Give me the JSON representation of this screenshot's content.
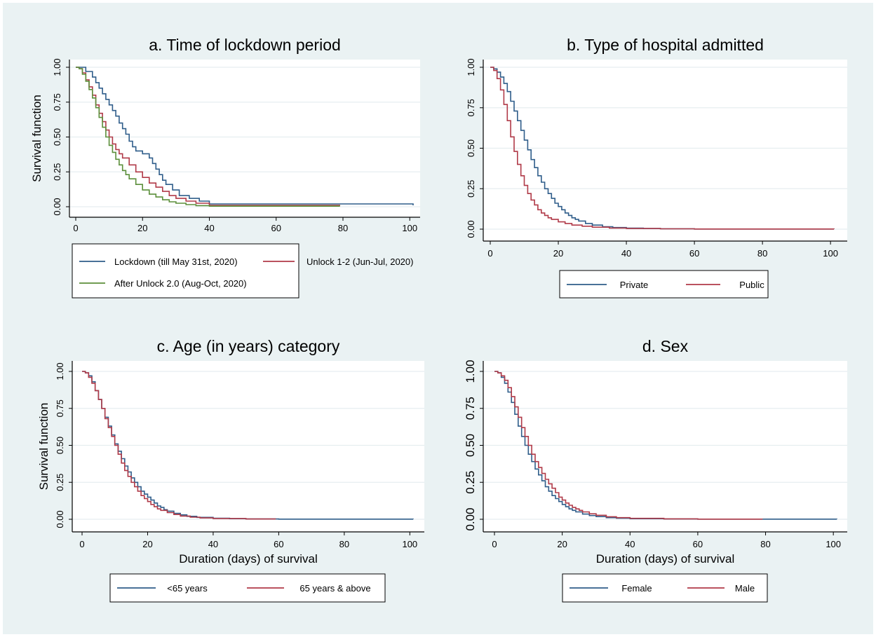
{
  "colors": {
    "figure_bg": "#eaf2f3",
    "plot_bg": "#ffffff",
    "grid": "#e6eef0",
    "navy": "#2f5d8a",
    "maroon": "#b03a48",
    "green": "#5b8f3a"
  },
  "chart_data": [
    {
      "type": "line",
      "step": true,
      "title": "a. Time of lockdown period",
      "xlabel": "",
      "ylabel": "Survival function",
      "xlim": [
        0,
        101
      ],
      "ylim": [
        0,
        1
      ],
      "xticks": [
        0,
        20,
        40,
        60,
        80,
        100
      ],
      "yticks": [
        "0.00",
        "0.25",
        "0.50",
        "0.75",
        "1.00"
      ],
      "legend": "bottom",
      "grid": true,
      "series": [
        {
          "name": "Lockdown (till May 31st, 2020)",
          "color": "#2f5d8a",
          "x": [
            0,
            3,
            5,
            6,
            7,
            8,
            9,
            10,
            11,
            12,
            13,
            14,
            15,
            16,
            17,
            18,
            20,
            22,
            23,
            24,
            25,
            26,
            27,
            29,
            31,
            34,
            37,
            40,
            101
          ],
          "y": [
            1.0,
            0.97,
            0.93,
            0.89,
            0.85,
            0.81,
            0.77,
            0.73,
            0.69,
            0.65,
            0.6,
            0.56,
            0.52,
            0.47,
            0.43,
            0.4,
            0.38,
            0.35,
            0.31,
            0.27,
            0.23,
            0.19,
            0.16,
            0.12,
            0.08,
            0.06,
            0.04,
            0.02,
            0.01
          ]
        },
        {
          "name": "Unlock 1-2 (Jun-Jul, 2020)",
          "color": "#b03a48",
          "x": [
            0,
            1,
            2,
            3,
            4,
            5,
            6,
            7,
            8,
            9,
            10,
            11,
            12,
            13,
            14,
            16,
            18,
            20,
            22,
            24,
            26,
            28,
            30,
            33,
            36,
            40,
            79
          ],
          "y": [
            1.0,
            0.99,
            0.96,
            0.91,
            0.86,
            0.8,
            0.73,
            0.67,
            0.61,
            0.55,
            0.5,
            0.45,
            0.41,
            0.38,
            0.35,
            0.3,
            0.25,
            0.21,
            0.17,
            0.14,
            0.11,
            0.08,
            0.06,
            0.04,
            0.025,
            0.01,
            0.005
          ]
        },
        {
          "name": "After Unlock 2.0 (Aug-Oct, 2020)",
          "color": "#5b8f3a",
          "x": [
            0,
            1,
            2,
            3,
            4,
            5,
            6,
            7,
            8,
            9,
            10,
            11,
            12,
            13,
            14,
            15,
            16,
            18,
            20,
            22,
            24,
            26,
            28,
            30,
            33,
            36,
            40,
            79
          ],
          "y": [
            1.0,
            0.99,
            0.95,
            0.9,
            0.84,
            0.78,
            0.71,
            0.64,
            0.57,
            0.5,
            0.44,
            0.39,
            0.34,
            0.3,
            0.26,
            0.23,
            0.2,
            0.16,
            0.12,
            0.09,
            0.07,
            0.05,
            0.035,
            0.025,
            0.015,
            0.008,
            0.004,
            0.002
          ]
        }
      ]
    },
    {
      "type": "line",
      "step": true,
      "title": "b. Type of hospital admitted",
      "xlabel": "",
      "ylabel": "",
      "xlim": [
        0,
        101
      ],
      "ylim": [
        0,
        1
      ],
      "xticks": [
        0,
        20,
        40,
        60,
        80,
        100
      ],
      "yticks": [
        "0.00",
        "0.25",
        "0.50",
        "0.75",
        "1.00"
      ],
      "legend": "bottom",
      "grid": true,
      "series": [
        {
          "name": "Private",
          "color": "#2f5d8a",
          "x": [
            0,
            1,
            2,
            3,
            4,
            5,
            6,
            7,
            8,
            9,
            10,
            11,
            12,
            13,
            14,
            15,
            16,
            17,
            18,
            19,
            20,
            21,
            22,
            23,
            24,
            25,
            26,
            28,
            30,
            33,
            36,
            40,
            45,
            50,
            60,
            101
          ],
          "y": [
            1.0,
            0.99,
            0.97,
            0.94,
            0.9,
            0.85,
            0.79,
            0.73,
            0.67,
            0.61,
            0.55,
            0.49,
            0.43,
            0.38,
            0.33,
            0.29,
            0.25,
            0.22,
            0.19,
            0.16,
            0.14,
            0.12,
            0.1,
            0.085,
            0.07,
            0.06,
            0.05,
            0.035,
            0.025,
            0.015,
            0.01,
            0.006,
            0.004,
            0.002,
            0.001,
            0.0
          ]
        },
        {
          "name": "Public",
          "color": "#b03a48",
          "x": [
            0,
            1,
            2,
            3,
            4,
            5,
            6,
            7,
            8,
            9,
            10,
            11,
            12,
            13,
            14,
            15,
            16,
            17,
            18,
            20,
            22,
            24,
            27,
            30,
            35,
            40,
            50,
            60,
            101
          ],
          "y": [
            1.0,
            0.98,
            0.93,
            0.86,
            0.77,
            0.67,
            0.57,
            0.48,
            0.4,
            0.33,
            0.27,
            0.22,
            0.18,
            0.15,
            0.12,
            0.1,
            0.085,
            0.07,
            0.06,
            0.045,
            0.035,
            0.025,
            0.018,
            0.012,
            0.007,
            0.004,
            0.002,
            0.001,
            0.0
          ]
        }
      ]
    },
    {
      "type": "line",
      "step": true,
      "title": "c. Age (in years) category",
      "xlabel": "Duration (days) of survival",
      "ylabel": "Survival function",
      "xlim": [
        0,
        101
      ],
      "ylim": [
        0,
        1
      ],
      "xticks": [
        0,
        20,
        40,
        60,
        80,
        100
      ],
      "yticks": [
        "0.00",
        "0.25",
        "0.50",
        "0.75",
        "1.00"
      ],
      "legend": "bottom",
      "grid": true,
      "series": [
        {
          "name": "<65 years",
          "color": "#2f5d8a",
          "x": [
            0,
            1,
            2,
            3,
            4,
            5,
            6,
            7,
            8,
            9,
            10,
            11,
            12,
            13,
            14,
            15,
            16,
            17,
            18,
            19,
            20,
            21,
            22,
            23,
            24,
            25,
            26,
            28,
            30,
            32,
            35,
            40,
            45,
            50,
            60,
            101
          ],
          "y": [
            1.0,
            0.99,
            0.97,
            0.93,
            0.87,
            0.81,
            0.75,
            0.69,
            0.63,
            0.57,
            0.51,
            0.46,
            0.41,
            0.36,
            0.32,
            0.28,
            0.25,
            0.22,
            0.19,
            0.17,
            0.15,
            0.13,
            0.11,
            0.09,
            0.08,
            0.065,
            0.055,
            0.04,
            0.03,
            0.02,
            0.013,
            0.007,
            0.004,
            0.002,
            0.001,
            0.0
          ]
        },
        {
          "name": "65 years & above",
          "color": "#b03a48",
          "x": [
            0,
            1,
            2,
            3,
            4,
            5,
            6,
            7,
            8,
            9,
            10,
            11,
            12,
            13,
            14,
            15,
            16,
            17,
            18,
            19,
            20,
            21,
            22,
            23,
            24,
            26,
            28,
            30,
            33,
            36,
            40,
            50,
            59
          ],
          "y": [
            1.0,
            0.99,
            0.96,
            0.92,
            0.87,
            0.81,
            0.75,
            0.68,
            0.62,
            0.56,
            0.5,
            0.44,
            0.38,
            0.33,
            0.29,
            0.25,
            0.22,
            0.19,
            0.16,
            0.14,
            0.12,
            0.1,
            0.085,
            0.07,
            0.06,
            0.045,
            0.032,
            0.022,
            0.014,
            0.009,
            0.005,
            0.002,
            0.001
          ]
        }
      ]
    },
    {
      "type": "line",
      "step": true,
      "title": "d. Sex",
      "xlabel": "Duration (days) of survival",
      "ylabel": "",
      "xlim": [
        0,
        101
      ],
      "ylim": [
        0,
        1
      ],
      "xticks": [
        0,
        20,
        40,
        60,
        80,
        100
      ],
      "yticks": [
        "0.00",
        "0.25",
        "0.50",
        "0.75",
        "1.00"
      ],
      "legend": "bottom",
      "grid": true,
      "series": [
        {
          "name": "Female",
          "color": "#2f5d8a",
          "x": [
            0,
            1,
            2,
            3,
            4,
            5,
            6,
            7,
            8,
            9,
            10,
            11,
            12,
            13,
            14,
            15,
            16,
            17,
            18,
            19,
            20,
            21,
            22,
            23,
            24,
            26,
            28,
            30,
            33,
            36,
            40,
            50,
            60,
            101
          ],
          "y": [
            1.0,
            0.99,
            0.96,
            0.92,
            0.86,
            0.79,
            0.71,
            0.63,
            0.56,
            0.5,
            0.44,
            0.39,
            0.34,
            0.3,
            0.26,
            0.22,
            0.19,
            0.16,
            0.14,
            0.12,
            0.1,
            0.085,
            0.07,
            0.06,
            0.05,
            0.035,
            0.025,
            0.018,
            0.011,
            0.007,
            0.004,
            0.002,
            0.001,
            0.0
          ]
        },
        {
          "name": "Male",
          "color": "#b03a48",
          "x": [
            0,
            1,
            2,
            3,
            4,
            5,
            6,
            7,
            8,
            9,
            10,
            11,
            12,
            13,
            14,
            15,
            16,
            17,
            18,
            19,
            20,
            21,
            22,
            23,
            24,
            25,
            26,
            28,
            30,
            33,
            36,
            40,
            50,
            60,
            79
          ],
          "y": [
            1.0,
            0.99,
            0.97,
            0.94,
            0.89,
            0.83,
            0.76,
            0.69,
            0.62,
            0.56,
            0.5,
            0.44,
            0.39,
            0.35,
            0.31,
            0.27,
            0.24,
            0.21,
            0.18,
            0.15,
            0.13,
            0.11,
            0.095,
            0.08,
            0.07,
            0.06,
            0.05,
            0.037,
            0.027,
            0.017,
            0.011,
            0.006,
            0.003,
            0.001,
            0.0
          ]
        }
      ]
    }
  ]
}
